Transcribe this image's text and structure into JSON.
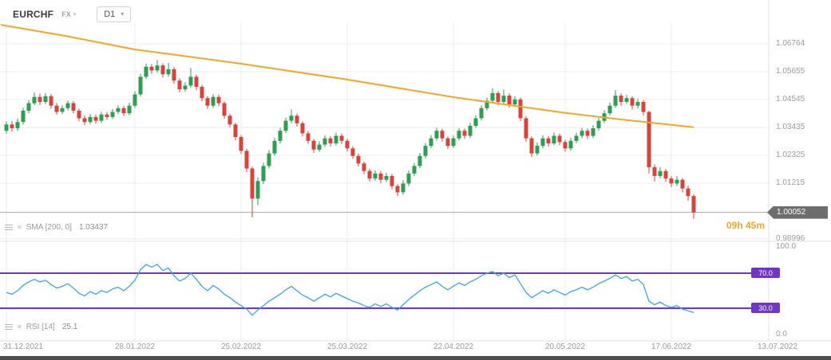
{
  "header": {
    "symbol": "EURCHF",
    "market": "FX",
    "timeframe": "D1"
  },
  "colors": {
    "up": "#2f9e53",
    "down": "#d6453c",
    "sma": "#f5a623",
    "rsi": "#3fa3e8",
    "level": "#7036c8",
    "grid": "#ececec",
    "separator": "#e2e2e2",
    "axis_text": "#9b9b9b",
    "price_line": "#a8a8a8",
    "badge_bg": "#6d6d6d",
    "countdown": "#f7a429"
  },
  "chart_data": {
    "type": "candlestick",
    "symbol": "EURCHF",
    "timeframe": "D1",
    "last_price": 1.00052,
    "last_price_label": "1.00052",
    "candle_close_countdown": "09h 45m",
    "y_ticks": [
      {
        "label": "1.06764",
        "price": 1.06764
      },
      {
        "label": "1.05655",
        "price": 1.05655
      },
      {
        "label": "1.04545",
        "price": 1.04545
      },
      {
        "label": "1.03435",
        "price": 1.03435
      },
      {
        "label": "1.02325",
        "price": 1.02325
      },
      {
        "label": "1.01215",
        "price": 1.01215
      },
      {
        "label": "0.98996",
        "price": 0.98996
      }
    ],
    "x_ticks": [
      {
        "label": "31.12.2021",
        "index": 0
      },
      {
        "label": "28.01.2022",
        "index": 23
      },
      {
        "label": "25.02.2022",
        "index": 42
      },
      {
        "label": "25.03.2022",
        "index": 61
      },
      {
        "label": "22.04.2022",
        "index": 80
      },
      {
        "label": "20.05.2022",
        "index": 100
      },
      {
        "label": "17.06.2022",
        "index": 119
      },
      {
        "label": "13.07.2022",
        "index": 138
      }
    ],
    "candles": [
      [
        1.033,
        1.0368,
        1.0318,
        1.0355
      ],
      [
        1.0355,
        1.0369,
        1.0326,
        1.034
      ],
      [
        1.034,
        1.0378,
        1.033,
        1.0365
      ],
      [
        1.0365,
        1.0422,
        1.0355,
        1.041
      ],
      [
        1.041,
        1.0452,
        1.04,
        1.044
      ],
      [
        1.044,
        1.0482,
        1.0432,
        1.0465
      ],
      [
        1.0465,
        1.0478,
        1.0432,
        1.0445
      ],
      [
        1.0445,
        1.048,
        1.0436,
        1.0468
      ],
      [
        1.0468,
        1.0476,
        1.0418,
        1.043
      ],
      [
        1.043,
        1.0441,
        1.0394,
        1.0405
      ],
      [
        1.0405,
        1.0432,
        1.0396,
        1.042
      ],
      [
        1.042,
        1.0451,
        1.0411,
        1.044
      ],
      [
        1.044,
        1.0449,
        1.0399,
        1.041
      ],
      [
        1.041,
        1.0419,
        1.0368,
        1.038
      ],
      [
        1.038,
        1.0391,
        1.0353,
        1.0365
      ],
      [
        1.0365,
        1.0397,
        1.0357,
        1.0385
      ],
      [
        1.0385,
        1.0395,
        1.0358,
        1.037
      ],
      [
        1.037,
        1.0406,
        1.0362,
        1.0395
      ],
      [
        1.0395,
        1.0405,
        1.0374,
        1.0385
      ],
      [
        1.0385,
        1.0417,
        1.0377,
        1.0405
      ],
      [
        1.0405,
        1.0431,
        1.0396,
        1.042
      ],
      [
        1.042,
        1.0429,
        1.0389,
        1.04
      ],
      [
        1.04,
        1.0442,
        1.0392,
        1.043
      ],
      [
        1.043,
        1.0487,
        1.0422,
        1.0475
      ],
      [
        1.0475,
        1.0557,
        1.0466,
        1.0545
      ],
      [
        1.0545,
        1.0598,
        1.0536,
        1.0585
      ],
      [
        1.0585,
        1.0596,
        1.0557,
        1.057
      ],
      [
        1.057,
        1.0612,
        1.0561,
        1.059
      ],
      [
        1.059,
        1.0599,
        1.0542,
        1.0555
      ],
      [
        1.0555,
        1.06,
        1.0546,
        1.0575
      ],
      [
        1.0575,
        1.0584,
        1.0517,
        1.053
      ],
      [
        1.053,
        1.0539,
        1.0483,
        1.0495
      ],
      [
        1.0495,
        1.0523,
        1.0486,
        1.051
      ],
      [
        1.051,
        1.058,
        1.0501,
        1.0545
      ],
      [
        1.0545,
        1.0554,
        1.0492,
        1.0505
      ],
      [
        1.0505,
        1.0513,
        1.0448,
        1.046
      ],
      [
        1.046,
        1.0469,
        1.0417,
        1.043
      ],
      [
        1.043,
        1.0476,
        1.0421,
        1.0465
      ],
      [
        1.0465,
        1.0474,
        1.0428,
        1.044
      ],
      [
        1.044,
        1.0448,
        1.0378,
        1.039
      ],
      [
        1.039,
        1.0398,
        1.0343,
        1.0355
      ],
      [
        1.0355,
        1.0362,
        1.0292,
        1.0305
      ],
      [
        1.0305,
        1.0313,
        1.0238,
        1.025
      ],
      [
        1.025,
        1.0258,
        1.0165,
        1.018
      ],
      [
        1.018,
        1.0188,
        0.9985,
        1.006
      ],
      [
        1.006,
        1.0145,
        1.0035,
        1.013
      ],
      [
        1.013,
        1.0203,
        1.0118,
        1.019
      ],
      [
        1.019,
        1.0253,
        1.018,
        1.024
      ],
      [
        1.024,
        1.0302,
        1.023,
        1.029
      ],
      [
        1.029,
        1.0342,
        1.028,
        1.033
      ],
      [
        1.033,
        1.0383,
        1.0321,
        1.037
      ],
      [
        1.037,
        1.0415,
        1.036,
        1.039
      ],
      [
        1.039,
        1.0399,
        1.0347,
        1.036
      ],
      [
        1.036,
        1.0368,
        1.0308,
        1.032
      ],
      [
        1.032,
        1.0329,
        1.0278,
        1.029
      ],
      [
        1.029,
        1.0298,
        1.0242,
        1.0255
      ],
      [
        1.0255,
        1.0288,
        1.0246,
        1.0275
      ],
      [
        1.0275,
        1.0312,
        1.0266,
        1.03
      ],
      [
        1.03,
        1.0309,
        1.0268,
        1.028
      ],
      [
        1.028,
        1.0322,
        1.0271,
        1.031
      ],
      [
        1.031,
        1.0319,
        1.0277,
        1.029
      ],
      [
        1.029,
        1.0298,
        1.0248,
        1.026
      ],
      [
        1.026,
        1.0269,
        1.0218,
        1.023
      ],
      [
        1.023,
        1.0239,
        1.0188,
        1.02
      ],
      [
        1.02,
        1.0208,
        1.0157,
        1.017
      ],
      [
        1.017,
        1.0179,
        1.0128,
        1.014
      ],
      [
        1.014,
        1.0172,
        1.0131,
        1.016
      ],
      [
        1.016,
        1.0169,
        1.0122,
        1.0135
      ],
      [
        1.0135,
        1.0163,
        1.0126,
        1.015
      ],
      [
        1.015,
        1.0158,
        1.0098,
        1.011
      ],
      [
        1.011,
        1.0118,
        1.007,
        1.0085
      ],
      [
        1.0085,
        1.0133,
        1.0076,
        1.012
      ],
      [
        1.012,
        1.0172,
        1.011,
        1.016
      ],
      [
        1.016,
        1.0202,
        1.015,
        1.019
      ],
      [
        1.019,
        1.0242,
        1.0181,
        1.023
      ],
      [
        1.023,
        1.0282,
        1.022,
        1.027
      ],
      [
        1.027,
        1.0313,
        1.0261,
        1.03
      ],
      [
        1.03,
        1.0342,
        1.029,
        1.033
      ],
      [
        1.033,
        1.0338,
        1.0288,
        1.03
      ],
      [
        1.03,
        1.0308,
        1.0258,
        1.027
      ],
      [
        1.027,
        1.0312,
        1.0262,
        1.03
      ],
      [
        1.03,
        1.0341,
        1.0292,
        1.033
      ],
      [
        1.033,
        1.0339,
        1.0298,
        1.031
      ],
      [
        1.031,
        1.0362,
        1.0301,
        1.035
      ],
      [
        1.035,
        1.0392,
        1.0341,
        1.038
      ],
      [
        1.038,
        1.0432,
        1.0371,
        1.042
      ],
      [
        1.042,
        1.0462,
        1.0411,
        1.045
      ],
      [
        1.045,
        1.05,
        1.044,
        1.048
      ],
      [
        1.048,
        1.0489,
        1.0432,
        1.0445
      ],
      [
        1.0445,
        1.0495,
        1.0436,
        1.047
      ],
      [
        1.047,
        1.0479,
        1.0422,
        1.0435
      ],
      [
        1.0435,
        1.0468,
        1.0426,
        1.0455
      ],
      [
        1.0455,
        1.0462,
        1.0368,
        1.038
      ],
      [
        1.038,
        1.0388,
        1.0287,
        1.03
      ],
      [
        1.03,
        1.0308,
        1.0226,
        1.024
      ],
      [
        1.024,
        1.0283,
        1.0231,
        1.027
      ],
      [
        1.027,
        1.0312,
        1.026,
        1.03
      ],
      [
        1.03,
        1.0309,
        1.0267,
        1.028
      ],
      [
        1.028,
        1.0323,
        1.0272,
        1.031
      ],
      [
        1.031,
        1.0319,
        1.0273,
        1.0285
      ],
      [
        1.0285,
        1.0294,
        1.0248,
        1.026
      ],
      [
        1.026,
        1.0302,
        1.0251,
        1.029
      ],
      [
        1.029,
        1.0322,
        1.0281,
        1.031
      ],
      [
        1.031,
        1.0342,
        1.0301,
        1.033
      ],
      [
        1.033,
        1.0339,
        1.0297,
        1.031
      ],
      [
        1.031,
        1.0352,
        1.0302,
        1.034
      ],
      [
        1.034,
        1.0381,
        1.0331,
        1.037
      ],
      [
        1.037,
        1.0412,
        1.0361,
        1.04
      ],
      [
        1.04,
        1.0443,
        1.0391,
        1.043
      ],
      [
        1.043,
        1.0492,
        1.0421,
        1.047
      ],
      [
        1.047,
        1.0479,
        1.043,
        1.0445
      ],
      [
        1.0445,
        1.0473,
        1.0436,
        1.046
      ],
      [
        1.046,
        1.0468,
        1.0415,
        1.043
      ],
      [
        1.043,
        1.0457,
        1.0419,
        1.0445
      ],
      [
        1.0445,
        1.0452,
        1.0392,
        1.0405
      ],
      [
        1.0405,
        1.041,
        1.016,
        1.0185
      ],
      [
        1.0185,
        1.0196,
        1.0128,
        1.015
      ],
      [
        1.015,
        1.0185,
        1.014,
        1.017
      ],
      [
        1.017,
        1.0178,
        1.0126,
        1.014
      ],
      [
        1.014,
        1.0149,
        1.0106,
        1.012
      ],
      [
        1.012,
        1.015,
        1.011,
        1.0135
      ],
      [
        1.0135,
        1.0142,
        1.0085,
        1.01
      ],
      [
        1.01,
        1.0112,
        1.0052,
        1.007
      ],
      [
        1.007,
        1.0078,
        0.998,
        1.00052
      ]
    ],
    "overlays": [
      {
        "name": "SMA 200",
        "label": "SMA [200, 0]",
        "value_label": "1.03437",
        "points": [
          [
            -1,
            1.0752
          ],
          [
            0,
            1.0748
          ],
          [
            10,
            1.071
          ],
          [
            23,
            1.0654
          ],
          [
            42,
            1.0597
          ],
          [
            61,
            1.0534
          ],
          [
            80,
            1.0464
          ],
          [
            100,
            1.0401
          ],
          [
            110,
            1.0375
          ],
          [
            119,
            1.0354
          ],
          [
            123,
            1.0344
          ]
        ]
      }
    ],
    "sub_panel": {
      "name": "RSI 14",
      "label": "RSI [14]",
      "value_label": "25.1",
      "range": [
        0,
        100
      ],
      "levels": [
        70,
        30
      ],
      "ticks": [
        {
          "label": "100.0",
          "value": 100,
          "badge": false
        },
        {
          "label": "70.0",
          "value": 70,
          "badge": true
        },
        {
          "label": "30.0",
          "value": 30,
          "badge": true
        },
        {
          "label": "0.0",
          "value": 0,
          "badge": false
        }
      ],
      "values": [
        48,
        46,
        50,
        56,
        60,
        63,
        60,
        62,
        57,
        53,
        55,
        58,
        53,
        47,
        44,
        49,
        46,
        50,
        48,
        52,
        54,
        50,
        55,
        62,
        74,
        80,
        77,
        80,
        73,
        76,
        67,
        61,
        64,
        70,
        63,
        55,
        50,
        56,
        52,
        46,
        42,
        37,
        33,
        29,
        22,
        28,
        33,
        38,
        42,
        46,
        51,
        55,
        50,
        45,
        42,
        38,
        42,
        46,
        43,
        47,
        44,
        41,
        38,
        36,
        33,
        31,
        35,
        32,
        35,
        31,
        28,
        34,
        40,
        45,
        50,
        54,
        57,
        60,
        55,
        51,
        55,
        59,
        56,
        60,
        63,
        67,
        70,
        72,
        67,
        70,
        65,
        68,
        58,
        48,
        42,
        46,
        50,
        47,
        51,
        48,
        45,
        49,
        51,
        54,
        51,
        54,
        58,
        61,
        64,
        68,
        64,
        66,
        61,
        63,
        57,
        38,
        34,
        37,
        33,
        31,
        33,
        29,
        27,
        25.1
      ]
    }
  }
}
